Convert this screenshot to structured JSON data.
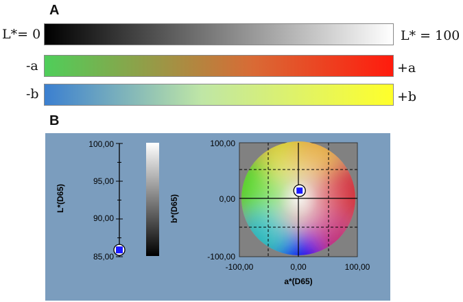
{
  "panel_a": {
    "label": "A",
    "lightness": {
      "left": "L*= 0",
      "right": "L* = 100"
    },
    "a_axis": {
      "left": "-a",
      "right": "+a"
    },
    "b_axis": {
      "left": "-b",
      "right": "+b"
    }
  },
  "panel_b": {
    "label": "B",
    "l_scale": {
      "ylabel": "L*(D65)",
      "ticks": [
        "100,00",
        "95,00",
        "90,00",
        "85,00"
      ],
      "marker_value": 85.9
    },
    "ab_plot": {
      "ylabel": "b*(D65)",
      "xlabel": "a*(D65)",
      "y_ticks": [
        "100,00",
        "0,00",
        "-100,00"
      ],
      "x_ticks": [
        "-100,00",
        "0,00",
        "100,00"
      ],
      "marker": {
        "a": 2,
        "b": 16
      }
    }
  },
  "colors": {
    "panel_bg": "#7b9dbe",
    "marker": "#1a1aff"
  }
}
